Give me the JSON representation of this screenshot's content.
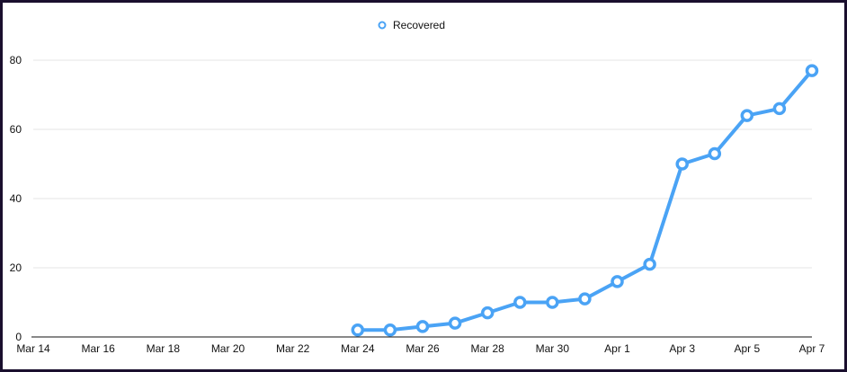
{
  "colors": {
    "series": "#4aa3f5",
    "grid": "#e6e6e6",
    "axis": "#111111",
    "frame": "#1a0f2e"
  },
  "legend": {
    "label": "Recovered",
    "position": "top-center"
  },
  "chart_data": {
    "type": "line",
    "title": "",
    "xlabel": "",
    "ylabel": "",
    "ylim": [
      0,
      80
    ],
    "yticks": [
      0,
      20,
      40,
      60,
      80
    ],
    "grid": true,
    "x_tick_labels": [
      "Mar 14",
      "Mar 16",
      "Mar 18",
      "Mar 20",
      "Mar 22",
      "Mar 24",
      "Mar 26",
      "Mar 28",
      "Mar 30",
      "Apr 1",
      "Apr 3",
      "Apr 5",
      "Apr 7"
    ],
    "series": [
      {
        "name": "Recovered",
        "x": [
          "Mar 24",
          "Mar 25",
          "Mar 26",
          "Mar 27",
          "Mar 28",
          "Mar 29",
          "Mar 30",
          "Mar 31",
          "Apr 1",
          "Apr 2",
          "Apr 3",
          "Apr 4",
          "Apr 5",
          "Apr 6",
          "Apr 7"
        ],
        "y": [
          2,
          2,
          3,
          4,
          7,
          10,
          10,
          11,
          16,
          21,
          50,
          53,
          64,
          66,
          77
        ]
      }
    ]
  }
}
